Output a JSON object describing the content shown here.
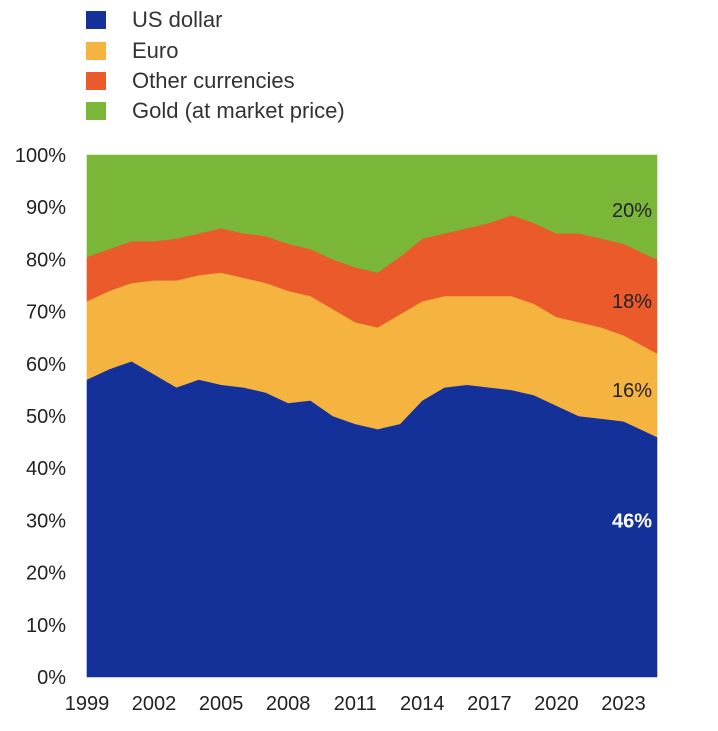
{
  "chart_data": {
    "type": "area",
    "stacked": true,
    "title": "",
    "xlabel": "",
    "ylabel": "",
    "ylim": [
      0,
      100
    ],
    "xlim": [
      1999,
      2024.5
    ],
    "grid": false,
    "legend_position": "top-left",
    "x_ticks": [
      "1999",
      "2002",
      "2005",
      "2008",
      "2011",
      "2014",
      "2017",
      "2020",
      "2023"
    ],
    "y_ticks": [
      "0%",
      "10%",
      "20%",
      "30%",
      "40%",
      "50%",
      "60%",
      "70%",
      "80%",
      "90%",
      "100%"
    ],
    "x": [
      1999,
      2000,
      2001,
      2002,
      2003,
      2004,
      2005,
      2006,
      2007,
      2008,
      2009,
      2010,
      2011,
      2012,
      2013,
      2014,
      2015,
      2016,
      2017,
      2018,
      2019,
      2020,
      2021,
      2022,
      2023,
      2024.5
    ],
    "series": [
      {
        "name": "US dollar",
        "color": "#14319a",
        "values": [
          57,
          59,
          60.5,
          58,
          55.5,
          57,
          56,
          55.5,
          54.5,
          52.5,
          53,
          50,
          48.5,
          47.5,
          48.5,
          53,
          55.5,
          56,
          55.5,
          55,
          54,
          52,
          50,
          49.5,
          49,
          46
        ]
      },
      {
        "name": "Euro",
        "color": "#f5b33f",
        "values": [
          15,
          15,
          15,
          18,
          20.5,
          20,
          21.5,
          21,
          21,
          21.5,
          20,
          20.5,
          19.5,
          19.5,
          21,
          19,
          17.5,
          17,
          17.5,
          18,
          17.5,
          17,
          18,
          17.5,
          16.5,
          16
        ]
      },
      {
        "name": "Other currencies",
        "color": "#ea5a2a",
        "values": [
          8.5,
          8,
          8,
          7.5,
          8,
          8,
          8.5,
          8.5,
          9,
          9,
          9,
          9.5,
          10.5,
          10.5,
          11,
          12,
          12,
          13,
          14,
          15.5,
          15.5,
          16,
          17,
          17,
          17.5,
          18
        ]
      },
      {
        "name": "Gold (at market price)",
        "color": "#7ab738",
        "values": [
          19.5,
          18,
          16.5,
          16.5,
          16,
          15,
          14,
          15,
          15.5,
          17,
          18,
          20,
          21.5,
          22.5,
          19.5,
          16,
          15,
          14,
          13,
          11.5,
          13,
          15,
          15,
          16,
          17,
          20
        ]
      }
    ],
    "end_labels": [
      {
        "series": "US dollar",
        "text": "46%",
        "color": "#ffffff"
      },
      {
        "series": "Euro",
        "text": "16%",
        "color": "#222222"
      },
      {
        "series": "Other currencies",
        "text": "18%",
        "color": "#222222"
      },
      {
        "series": "Gold (at market price)",
        "text": "20%",
        "color": "#222222"
      }
    ]
  }
}
